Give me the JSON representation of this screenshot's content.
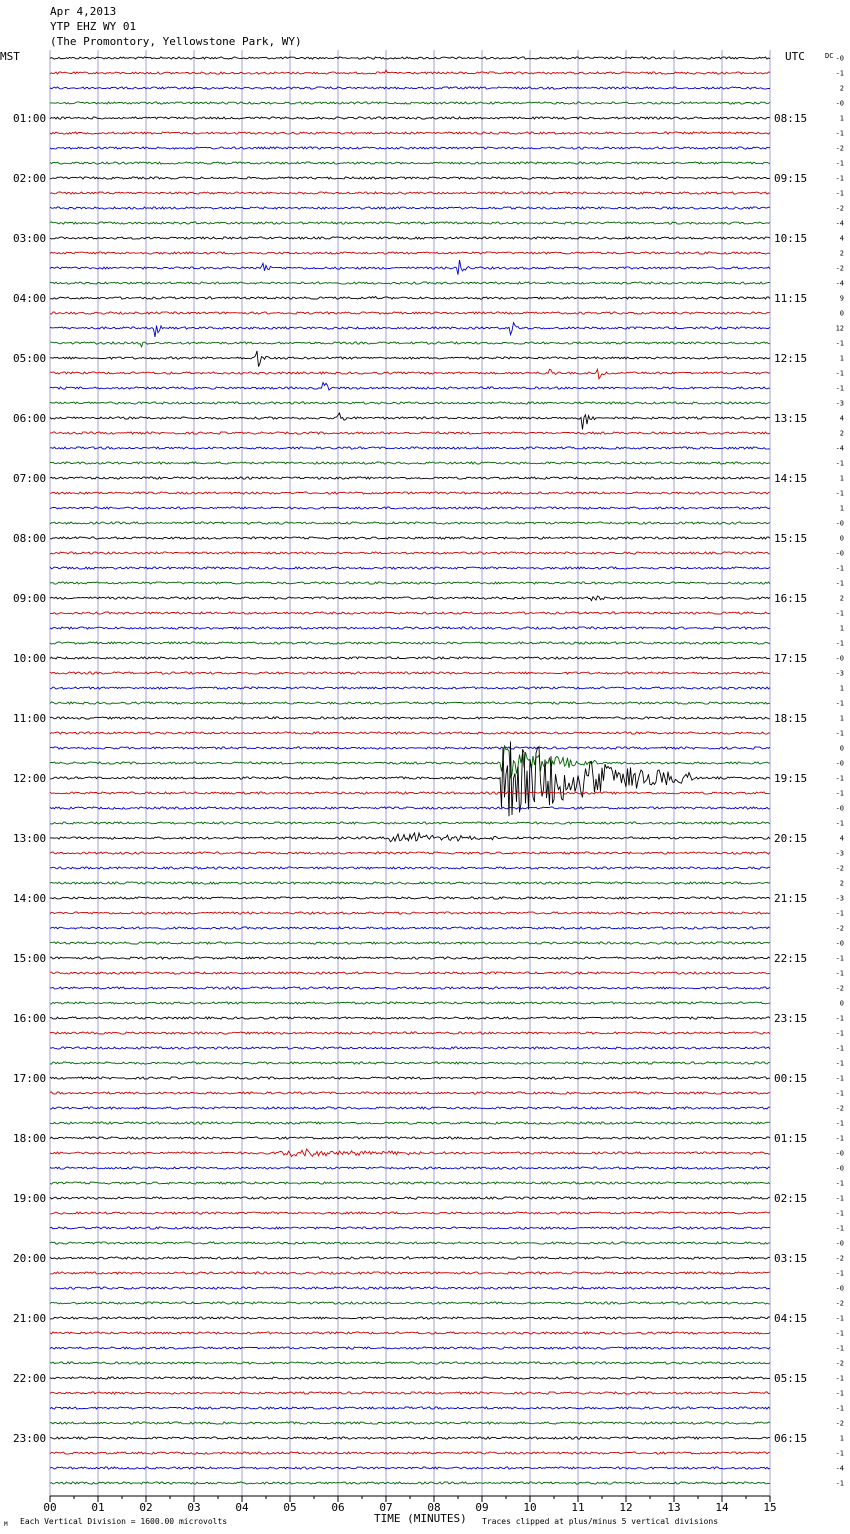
{
  "header": {
    "date": "Apr 4,2013",
    "station": "YTP EHZ WY 01",
    "location": "(The Promontory, Yellowstone Park, WY)"
  },
  "labels": {
    "left_zone": "MST",
    "right_zone": "UTC",
    "dc": "DC"
  },
  "footer": {
    "scale": "Each Vertical Division = 1600.00 microvolts",
    "xlabel": "TIME (MINUTES)",
    "clip_note": "Traces clipped at plus/minus 5 vertical divisions",
    "corner_mark": "M"
  },
  "chart_data": {
    "type": "line",
    "title": "YTP EHZ WY 01",
    "xlabel": "TIME (MINUTES)",
    "x_ticks": [
      "00",
      "01",
      "02",
      "03",
      "04",
      "05",
      "06",
      "07",
      "08",
      "09",
      "10",
      "11",
      "12",
      "13",
      "14",
      "15"
    ],
    "xlim": [
      0,
      15
    ],
    "trace_minutes": 15,
    "traces_per_hour": 4,
    "trace_colors": [
      "#000000",
      "#d00000",
      "#0000d0",
      "#006400"
    ],
    "left_hour_labels": [
      "01:00",
      "02:00",
      "03:00",
      "04:00",
      "05:00",
      "06:00",
      "07:00",
      "08:00",
      "09:00",
      "10:00",
      "11:00",
      "12:00",
      "13:00",
      "14:00",
      "15:00",
      "16:00",
      "17:00",
      "18:00",
      "19:00",
      "20:00",
      "21:00",
      "22:00",
      "23:00"
    ],
    "right_hour_labels": [
      "08:15",
      "09:15",
      "10:15",
      "11:15",
      "12:15",
      "13:15",
      "14:15",
      "15:15",
      "16:15",
      "17:15",
      "18:15",
      "19:15",
      "20:15",
      "21:15",
      "22:15",
      "23:15",
      "00:15",
      "01:15",
      "02:15",
      "03:15",
      "04:15",
      "05:15",
      "06:15"
    ],
    "dc_offsets": [
      "-0",
      "-1",
      "2",
      "-0",
      "1",
      "-1",
      "-2",
      "-1",
      "-1",
      "-1",
      "-2",
      "-4",
      "4",
      "2",
      "-2",
      "-4",
      "9",
      "0",
      "12",
      "-1",
      "1",
      "-1",
      "-1",
      "-3",
      "4",
      "2",
      "-4",
      "-1",
      "1",
      "-1",
      "1",
      "-0",
      "0",
      "-0",
      "-1",
      "-1",
      "2",
      "-1",
      "1",
      "-1",
      "-0",
      "-3",
      "1",
      "-1",
      "1",
      "-1",
      "0",
      "-0",
      "-1",
      "-1",
      "-0",
      "-1",
      "4",
      "-3",
      "-2",
      "2",
      "-3",
      "-1",
      "-2",
      "-0",
      "-1",
      "-1",
      "-2",
      "0",
      "-1",
      "-1",
      "-1",
      "-1",
      "-1",
      "-1",
      "-2",
      "-1",
      "-1",
      "-0",
      "-0",
      "-1",
      "-1",
      "-1",
      "-1",
      "-0",
      "-2",
      "-1",
      "-0",
      "-2",
      "-1",
      "-1",
      "-1",
      "-2",
      "-1",
      "-1",
      "-1",
      "-2",
      "1",
      "-1",
      "-4",
      "-1"
    ],
    "events": [
      {
        "trace": 1,
        "minute": 7.0,
        "amp": 3
      },
      {
        "trace": 14,
        "minute": 4.4,
        "amp": 8
      },
      {
        "trace": 14,
        "minute": 8.5,
        "amp": 12
      },
      {
        "trace": 16,
        "minute": 6.6,
        "amp": 7
      },
      {
        "trace": 18,
        "minute": 9.6,
        "amp": 9
      },
      {
        "trace": 18,
        "minute": 2.2,
        "amp": 9
      },
      {
        "trace": 19,
        "minute": 1.9,
        "amp": 7
      },
      {
        "trace": 20,
        "minute": 4.3,
        "amp": 16
      },
      {
        "trace": 21,
        "minute": 11.4,
        "amp": 10
      },
      {
        "trace": 21,
        "minute": 10.4,
        "amp": 6
      },
      {
        "trace": 22,
        "minute": 5.7,
        "amp": 7
      },
      {
        "trace": 24,
        "minute": 11.1,
        "amp": 14
      },
      {
        "trace": 24,
        "minute": 6.0,
        "amp": 7
      },
      {
        "trace": 36,
        "minute": 11.3,
        "amp": 7
      },
      {
        "trace": 48,
        "minute": 9.4,
        "amp": 50,
        "dur": 4.0
      },
      {
        "trace": 47,
        "minute": 9.4,
        "amp": 22,
        "dur": 2.0
      },
      {
        "trace": 52,
        "minute": 7.1,
        "amp": 7,
        "dur": 2.5
      },
      {
        "trace": 73,
        "minute": 4.8,
        "amp": 5,
        "dur": 3.5
      }
    ]
  }
}
